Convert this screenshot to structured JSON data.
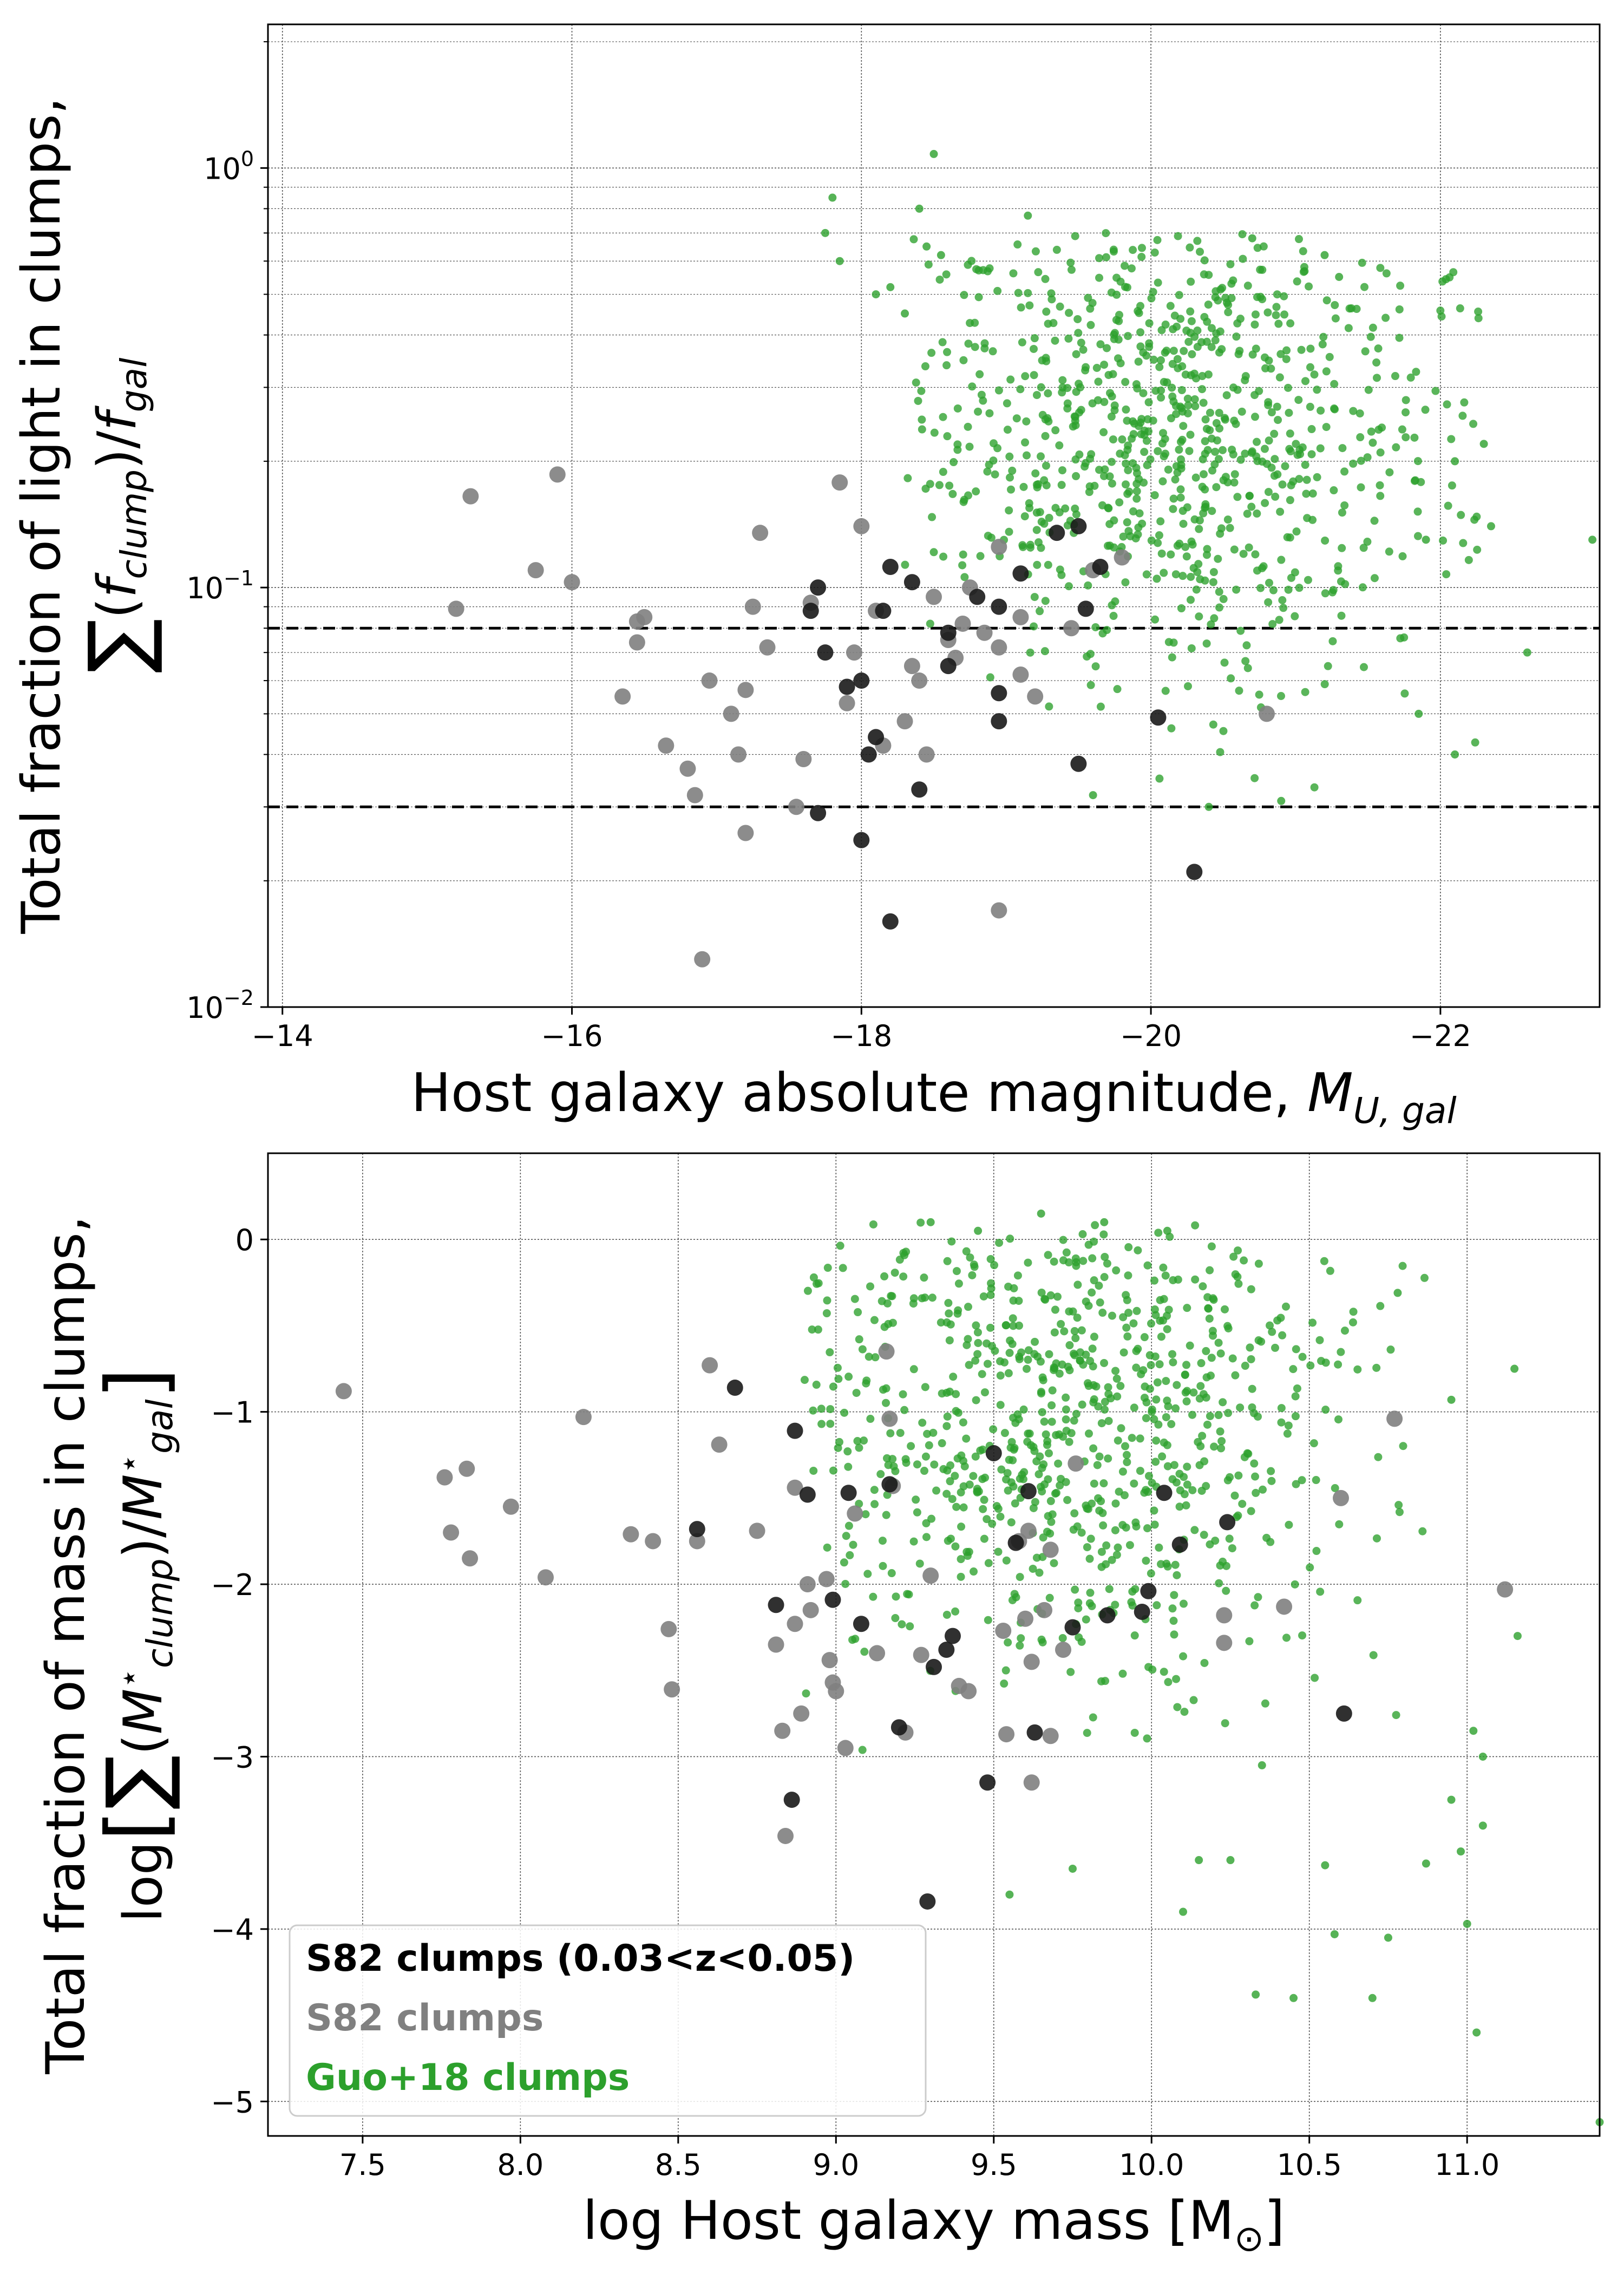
{
  "colors": {
    "s82_z": "#1a1a1a",
    "s82": "#808080",
    "guo": "#2ca02c",
    "grid": "#555555"
  },
  "chart_data": [
    {
      "type": "scatter",
      "xlabel": "Host galaxy absolute magnitude, M_U,gal",
      "xlabel_text": "Host galaxy absolute magnitude, ",
      "xlabel_math": "M",
      "xlabel_sub": "U, gal",
      "ylabel_line1": "Total fraction of light in clumps,",
      "ylabel_line2": "∑(f_clump)/f_gal",
      "y_scale": "log",
      "x_inverted": true,
      "xlim": [
        -13.9,
        -23.1
      ],
      "ylim": [
        0.01,
        2.2
      ],
      "x_ticks": [
        -14,
        -16,
        -18,
        -20,
        -22
      ],
      "x_tick_labels": [
        "−14",
        "−16",
        "−18",
        "−20",
        "−22"
      ],
      "y_ticks": [
        0.01,
        0.1,
        1
      ],
      "y_tick_labels": [
        {
          "base": "10",
          "exp": "−2"
        },
        {
          "base": "10",
          "exp": "−1"
        },
        {
          "base": "10",
          "exp": "0"
        }
      ],
      "hlines": [
        0.08,
        0.03
      ],
      "grid": true,
      "series": [
        {
          "name": "S82 clumps (0.03<z<0.05)",
          "points": [
            [
              -17.7,
              0.1
            ],
            [
              -17.65,
              0.088
            ],
            [
              -17.75,
              0.07
            ],
            [
              -17.9,
              0.058
            ],
            [
              -18.0,
              0.06
            ],
            [
              -18.1,
              0.044
            ],
            [
              -18.05,
              0.04
            ],
            [
              -18.2,
              0.112
            ],
            [
              -18.35,
              0.103
            ],
            [
              -18.15,
              0.088
            ],
            [
              -18.6,
              0.078
            ],
            [
              -18.6,
              0.065
            ],
            [
              -18.8,
              0.095
            ],
            [
              -18.95,
              0.09
            ],
            [
              -18.95,
              0.056
            ],
            [
              -18.95,
              0.048
            ],
            [
              -19.1,
              0.108
            ],
            [
              -19.35,
              0.135
            ],
            [
              -19.5,
              0.14
            ],
            [
              -19.65,
              0.112
            ],
            [
              -19.55,
              0.089
            ],
            [
              -19.5,
              0.038
            ],
            [
              -17.7,
              0.029
            ],
            [
              -18.0,
              0.025
            ],
            [
              -18.4,
              0.033
            ],
            [
              -18.2,
              0.016
            ],
            [
              -20.05,
              0.049
            ],
            [
              -20.3,
              0.021
            ]
          ]
        },
        {
          "name": "S82 clumps",
          "points": [
            [
              -15.2,
              0.089
            ],
            [
              -15.3,
              0.165
            ],
            [
              -15.75,
              0.11
            ],
            [
              -15.9,
              0.186
            ],
            [
              -16.0,
              0.103
            ],
            [
              -16.35,
              0.055
            ],
            [
              -16.45,
              0.074
            ],
            [
              -16.45,
              0.083
            ],
            [
              -16.5,
              0.085
            ],
            [
              -16.65,
              0.042
            ],
            [
              -16.8,
              0.037
            ],
            [
              -16.85,
              0.032
            ],
            [
              -16.95,
              0.06
            ],
            [
              -16.9,
              0.013
            ],
            [
              -17.1,
              0.05
            ],
            [
              -17.15,
              0.04
            ],
            [
              -17.2,
              0.057
            ],
            [
              -17.2,
              0.026
            ],
            [
              -17.3,
              0.135
            ],
            [
              -17.25,
              0.09
            ],
            [
              -17.35,
              0.072
            ],
            [
              -17.55,
              0.03
            ],
            [
              -17.6,
              0.039
            ],
            [
              -17.65,
              0.092
            ],
            [
              -17.9,
              0.053
            ],
            [
              -17.85,
              0.178
            ],
            [
              -17.95,
              0.07
            ],
            [
              -18.1,
              0.088
            ],
            [
              -18.15,
              0.042
            ],
            [
              -18.0,
              0.14
            ],
            [
              -18.3,
              0.048
            ],
            [
              -18.35,
              0.065
            ],
            [
              -18.4,
              0.06
            ],
            [
              -18.45,
              0.04
            ],
            [
              -18.5,
              0.095
            ],
            [
              -18.6,
              0.075
            ],
            [
              -18.65,
              0.068
            ],
            [
              -18.7,
              0.082
            ],
            [
              -18.75,
              0.1
            ],
            [
              -18.85,
              0.078
            ],
            [
              -18.95,
              0.072
            ],
            [
              -18.95,
              0.125
            ],
            [
              -19.1,
              0.085
            ],
            [
              -19.1,
              0.062
            ],
            [
              -19.2,
              0.055
            ],
            [
              -19.45,
              0.08
            ],
            [
              -19.6,
              0.11
            ],
            [
              -19.8,
              0.118
            ],
            [
              -18.95,
              0.017
            ],
            [
              -20.8,
              0.05
            ]
          ]
        },
        {
          "name": "Guo+18 clumps",
          "points": [
            [
              -17.8,
              0.85
            ],
            [
              -17.75,
              0.7
            ],
            [
              -17.85,
              0.6
            ],
            [
              -18.1,
              0.5
            ],
            [
              -18.2,
              0.52
            ],
            [
              -18.4,
              0.8
            ],
            [
              -18.5,
              1.08
            ],
            [
              -19.15,
              0.77
            ],
            [
              -18.45,
              0.65
            ],
            [
              -18.3,
              0.45
            ],
            [
              -18.55,
              0.62
            ],
            [
              -20.7,
              0.68
            ],
            [
              -21.2,
              0.62
            ],
            [
              -21.3,
              0.55
            ],
            [
              -22.1,
              0.2
            ],
            [
              -22.3,
              0.22
            ],
            [
              -22.35,
              0.14
            ],
            [
              -22.6,
              0.07
            ],
            [
              -23.05,
              0.13
            ],
            [
              -22.1,
              0.04
            ],
            [
              -21.85,
              0.05
            ],
            [
              -21.9,
              0.13
            ],
            [
              -20.4,
              0.03
            ],
            [
              -19.6,
              0.032
            ],
            [
              -20.9,
              0.031
            ]
          ]
        }
      ]
    },
    {
      "type": "scatter",
      "xlabel": "log Host galaxy mass [M_⊙]",
      "xlabel_text": "log Host galaxy mass [M",
      "xlabel_sub": "⊙",
      "xlabel_end": "]",
      "ylabel_line1": "Total fraction of mass in clumps,",
      "ylabel_line2": "log[∑(M⋆_clump)/M⋆_gal]",
      "xlim": [
        7.2,
        11.42
      ],
      "ylim": [
        -5.2,
        0.5
      ],
      "x_ticks": [
        7.5,
        8.0,
        8.5,
        9.0,
        9.5,
        10.0,
        10.5,
        11.0
      ],
      "x_tick_labels": [
        "7.5",
        "8.0",
        "8.5",
        "9.0",
        "9.5",
        "10.0",
        "10.5",
        "11.0"
      ],
      "y_ticks": [
        0,
        -1,
        -2,
        -3,
        -4,
        -5
      ],
      "y_tick_labels": [
        "0",
        "−1",
        "−2",
        "−3",
        "−4",
        "−5"
      ],
      "grid": true,
      "legend_location": "lower left",
      "legend": [
        "S82 clumps (0.03<z<0.05)",
        "S82 clumps",
        "Guo+18 clumps"
      ],
      "series": [
        {
          "name": "S82 clumps (0.03<z<0.05)",
          "points": [
            [
              8.56,
              -1.68
            ],
            [
              8.68,
              -0.86
            ],
            [
              8.87,
              -1.11
            ],
            [
              8.81,
              -2.12
            ],
            [
              8.91,
              -1.48
            ],
            [
              8.99,
              -2.09
            ],
            [
              9.04,
              -1.47
            ],
            [
              9.08,
              -2.23
            ],
            [
              9.2,
              -2.83
            ],
            [
              9.17,
              -1.42
            ],
            [
              9.31,
              -2.48
            ],
            [
              9.35,
              -2.38
            ],
            [
              9.37,
              -2.3
            ],
            [
              9.5,
              -1.24
            ],
            [
              9.48,
              -3.15
            ],
            [
              9.57,
              -1.76
            ],
            [
              9.61,
              -1.46
            ],
            [
              9.63,
              -2.86
            ],
            [
              9.75,
              -2.25
            ],
            [
              9.86,
              -2.18
            ],
            [
              9.97,
              -2.16
            ],
            [
              10.04,
              -1.47
            ],
            [
              10.09,
              -1.77
            ],
            [
              9.99,
              -2.04
            ],
            [
              10.24,
              -1.64
            ],
            [
              10.61,
              -2.75
            ],
            [
              8.86,
              -3.25
            ],
            [
              9.29,
              -3.84
            ]
          ]
        },
        {
          "name": "S82 clumps",
          "points": [
            [
              7.44,
              -0.88
            ],
            [
              7.76,
              -1.38
            ],
            [
              7.78,
              -1.7
            ],
            [
              7.83,
              -1.33
            ],
            [
              7.84,
              -1.85
            ],
            [
              7.97,
              -1.55
            ],
            [
              8.08,
              -1.96
            ],
            [
              8.2,
              -1.03
            ],
            [
              8.35,
              -1.71
            ],
            [
              8.42,
              -1.75
            ],
            [
              8.47,
              -2.26
            ],
            [
              8.48,
              -2.61
            ],
            [
              8.56,
              -1.75
            ],
            [
              8.6,
              -0.73
            ],
            [
              8.63,
              -1.19
            ],
            [
              8.75,
              -1.69
            ],
            [
              8.81,
              -2.35
            ],
            [
              8.83,
              -2.85
            ],
            [
              8.87,
              -1.44
            ],
            [
              8.87,
              -2.23
            ],
            [
              8.89,
              -2.75
            ],
            [
              8.91,
              -2.0
            ],
            [
              8.92,
              -2.15
            ],
            [
              8.97,
              -1.97
            ],
            [
              8.98,
              -2.44
            ],
            [
              8.99,
              -2.57
            ],
            [
              9.0,
              -2.62
            ],
            [
              9.03,
              -2.95
            ],
            [
              9.06,
              -1.59
            ],
            [
              9.13,
              -2.4
            ],
            [
              9.16,
              -0.65
            ],
            [
              9.17,
              -1.04
            ],
            [
              9.18,
              -1.43
            ],
            [
              9.22,
              -2.86
            ],
            [
              9.27,
              -2.41
            ],
            [
              9.3,
              -1.95
            ],
            [
              9.39,
              -2.59
            ],
            [
              9.42,
              -2.62
            ],
            [
              9.53,
              -2.27
            ],
            [
              9.54,
              -2.87
            ],
            [
              9.58,
              -1.75
            ],
            [
              9.6,
              -2.2
            ],
            [
              9.62,
              -2.45
            ],
            [
              9.62,
              -3.15
            ],
            [
              9.66,
              -2.15
            ],
            [
              9.68,
              -1.8
            ],
            [
              9.68,
              -2.88
            ],
            [
              9.76,
              -1.3
            ],
            [
              10.23,
              -2.18
            ],
            [
              10.23,
              -2.34
            ],
            [
              10.42,
              -2.13
            ],
            [
              10.6,
              -1.5
            ],
            [
              10.77,
              -1.04
            ],
            [
              11.12,
              -2.03
            ],
            [
              9.61,
              -1.69
            ],
            [
              8.84,
              -3.46
            ],
            [
              9.72,
              -2.38
            ]
          ]
        },
        {
          "name": "Guo+18 clumps",
          "points": [
            [
              9.3,
              0.1
            ],
            [
              9.45,
              0.05
            ],
            [
              9.65,
              0.15
            ],
            [
              9.85,
              0.1
            ],
            [
              10.05,
              0.05
            ],
            [
              11.15,
              -0.75
            ],
            [
              10.95,
              -0.93
            ],
            [
              10.78,
              -0.31
            ],
            [
              11.42,
              -5.12
            ],
            [
              11.03,
              -4.6
            ],
            [
              10.7,
              -4.4
            ],
            [
              10.45,
              -4.4
            ],
            [
              10.33,
              -4.38
            ],
            [
              10.58,
              -4.03
            ],
            [
              10.75,
              -4.05
            ],
            [
              11.0,
              -3.97
            ],
            [
              10.87,
              -3.62
            ],
            [
              10.55,
              -3.63
            ],
            [
              10.25,
              -3.6
            ],
            [
              10.15,
              -3.6
            ],
            [
              10.1,
              -3.9
            ],
            [
              9.75,
              -3.65
            ],
            [
              9.55,
              -3.8
            ],
            [
              11.02,
              -2.85
            ],
            [
              11.05,
              -3.0
            ],
            [
              11.05,
              -3.4
            ],
            [
              11.16,
              -2.3
            ],
            [
              10.95,
              -3.25
            ],
            [
              10.98,
              -3.55
            ],
            [
              10.35,
              -3.05
            ]
          ]
        }
      ]
    }
  ]
}
